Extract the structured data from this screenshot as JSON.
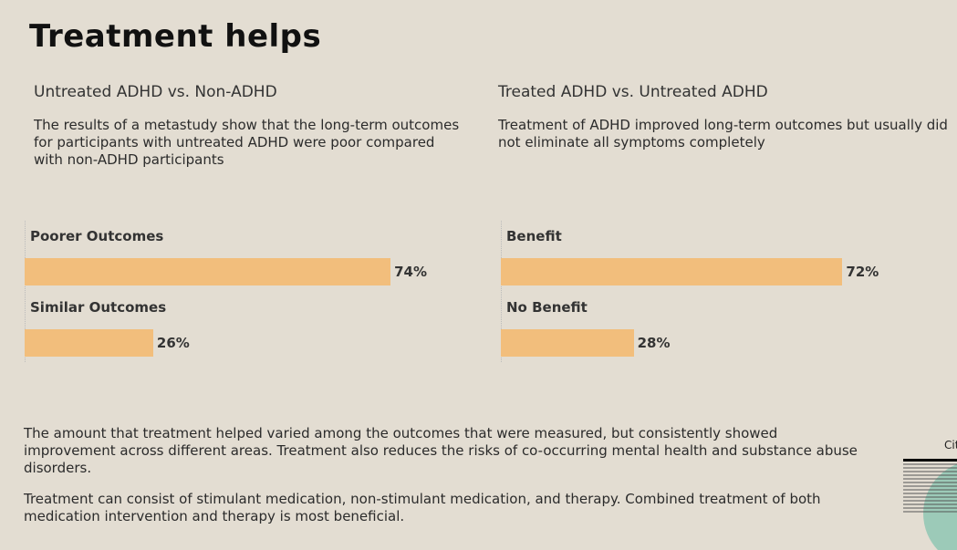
{
  "title": "Treatment helps",
  "colors": {
    "bar": "#f2be7c",
    "background": "#e3ddd2",
    "circle": "#9ccab8"
  },
  "chart_data": [
    {
      "type": "bar",
      "orientation": "horizontal",
      "title": "Untreated ADHD vs. Non-ADHD",
      "subtitle": "The results of a metastudy show that the long-term outcomes for participants with untreated ADHD were poor compared with non-ADHD participants",
      "categories": [
        "Poorer Outcomes",
        "Similar Outcomes"
      ],
      "values": [
        74,
        26
      ],
      "labels": [
        "74%",
        "26%"
      ],
      "xlim": [
        0,
        100
      ],
      "grid": false
    },
    {
      "type": "bar",
      "orientation": "horizontal",
      "title": "Treated ADHD vs. Untreated ADHD",
      "subtitle": "Treatment of ADHD improved long-term outcomes but usually did not eliminate all symptoms completely",
      "categories": [
        "Benefit",
        "No Benefit"
      ],
      "values": [
        72,
        28
      ],
      "labels": [
        "72%",
        "28%"
      ],
      "xlim": [
        0,
        100
      ],
      "grid": false
    }
  ],
  "paragraphs": [
    "The amount that treatment helped varied among the outcomes that were measured, but consistently showed improvement across different areas. Treatment also reduces the risks of co-occurring mental health and substance abuse disorders.",
    "Treatment can consist of stimulant medication, non-stimulant medication, and therapy. Combined treatment of both medication intervention and therapy is most beneficial."
  ],
  "cite": "Cit"
}
